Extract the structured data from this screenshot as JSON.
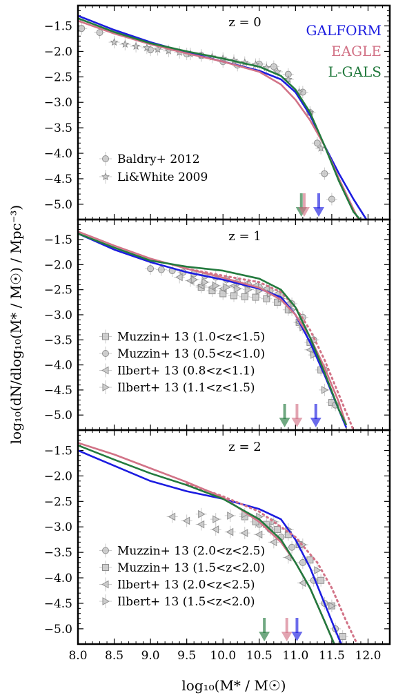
{
  "chart_data": {
    "type": "line",
    "xlabel": "log₁₀(M* / M☉)",
    "ylabel": "log₁₀(dN/dlog₁₀(M* / M☉) / Mpc⁻³)",
    "xlim": [
      8.0,
      12.3
    ],
    "ylim": [
      -5.3,
      -1.1
    ],
    "x_ticks": [
      "8.0",
      "8.5",
      "9.0",
      "9.5",
      "10.0",
      "10.5",
      "11.0",
      "11.5",
      "12.0"
    ],
    "y_ticks": [
      "-1.5",
      "-2.0",
      "-2.5",
      "-3.0",
      "-3.5",
      "-4.0",
      "-4.5",
      "-5.0"
    ],
    "colors": {
      "GALFORM": "#1c1ce0",
      "EAGLE": "#d27387",
      "L-GALS": "#237a3e",
      "data": "#9a9a9a"
    },
    "panels": [
      {
        "label": "z = 0",
        "model_labels": [
          "GALFORM",
          "EAGLE",
          "L-GALS"
        ],
        "series": [
          {
            "name": "GALFORM",
            "style": "solid",
            "x": [
              8.0,
              8.5,
              9.0,
              9.5,
              10.0,
              10.5,
              10.8,
              11.0,
              11.2,
              11.4,
              11.6,
              11.8,
              12.0
            ],
            "y": [
              -1.3,
              -1.58,
              -1.82,
              -2.02,
              -2.2,
              -2.38,
              -2.55,
              -2.8,
              -3.25,
              -3.85,
              -4.4,
              -4.9,
              -5.35
            ]
          },
          {
            "name": "EAGLE",
            "style": "solid",
            "x": [
              8.0,
              8.5,
              9.0,
              9.5,
              10.0,
              10.5,
              10.8,
              11.0,
              11.2,
              11.4,
              11.6,
              11.8,
              11.9
            ],
            "y": [
              -1.4,
              -1.65,
              -1.86,
              -2.04,
              -2.2,
              -2.4,
              -2.65,
              -2.95,
              -3.35,
              -3.85,
              -4.5,
              -5.1,
              -5.4
            ]
          },
          {
            "name": "L-GALS",
            "style": "solid",
            "x": [
              8.0,
              8.5,
              9.0,
              9.5,
              10.0,
              10.5,
              10.8,
              11.0,
              11.2,
              11.4,
              11.6,
              11.8,
              11.95
            ],
            "y": [
              -1.35,
              -1.62,
              -1.84,
              -2.0,
              -2.14,
              -2.3,
              -2.48,
              -2.75,
              -3.2,
              -3.85,
              -4.55,
              -5.15,
              -5.4
            ]
          },
          {
            "name": "Baldry+ 2012",
            "marker": "circle",
            "x": [
              8.05,
              8.3,
              9.0,
              9.5,
              9.7,
              10.0,
              10.2,
              10.5,
              10.7,
              10.9,
              11.1,
              11.2,
              11.3,
              11.4,
              11.5
            ],
            "y": [
              -1.55,
              -1.63,
              -1.97,
              -2.05,
              -2.08,
              -2.2,
              -2.27,
              -2.25,
              -2.3,
              -2.45,
              -2.8,
              -3.2,
              -3.8,
              -4.4,
              -4.9
            ]
          },
          {
            "name": "Li&White 2009",
            "marker": "star",
            "x": [
              8.5,
              8.65,
              8.8,
              8.95,
              9.1,
              9.25,
              9.4,
              9.55,
              9.7,
              9.85,
              10.0,
              10.15,
              10.3,
              10.45,
              10.6,
              10.75,
              10.9,
              11.05,
              11.2,
              11.35
            ],
            "y": [
              -1.82,
              -1.86,
              -1.9,
              -1.93,
              -1.96,
              -1.99,
              -2.02,
              -2.05,
              -2.08,
              -2.11,
              -2.14,
              -2.18,
              -2.22,
              -2.26,
              -2.32,
              -2.4,
              -2.55,
              -2.8,
              -3.2,
              -3.9
            ]
          }
        ],
        "arrows": [
          {
            "series": "L-GALS",
            "x": 11.08
          },
          {
            "series": "EAGLE",
            "x": 11.12
          },
          {
            "series": "GALFORM",
            "x": 11.32
          }
        ],
        "legend": [
          "Baldry+ 2012",
          "Li&White 2009"
        ]
      },
      {
        "label": "z = 1",
        "series": [
          {
            "name": "GALFORM",
            "style": "solid",
            "x": [
              8.0,
              8.5,
              9.0,
              9.5,
              10.0,
              10.5,
              10.8,
              11.0,
              11.2,
              11.4,
              11.6,
              11.7
            ],
            "y": [
              -1.38,
              -1.7,
              -1.95,
              -2.15,
              -2.3,
              -2.48,
              -2.65,
              -3.0,
              -3.55,
              -4.2,
              -4.9,
              -5.25
            ]
          },
          {
            "name": "EAGLE",
            "style": "solid",
            "x": [
              8.0,
              8.5,
              9.0,
              9.5,
              10.0,
              10.5,
              10.8,
              11.0,
              11.2,
              11.4,
              11.6,
              11.7
            ],
            "y": [
              -1.34,
              -1.62,
              -1.88,
              -2.08,
              -2.26,
              -2.46,
              -2.7,
              -3.0,
              -3.45,
              -4.05,
              -4.75,
              -5.2
            ]
          },
          {
            "name": "EAGLE dotted",
            "style": "dotted",
            "x": [
              9.5,
              10.0,
              10.5,
              10.8,
              11.0,
              11.2,
              11.4,
              11.6,
              11.8
            ],
            "y": [
              -2.08,
              -2.22,
              -2.35,
              -2.55,
              -2.85,
              -3.3,
              -3.9,
              -4.6,
              -5.3
            ]
          },
          {
            "name": "L-GALS",
            "style": "solid",
            "x": [
              8.0,
              8.5,
              9.0,
              9.5,
              10.0,
              10.5,
              10.8,
              11.0,
              11.2,
              11.4,
              11.6,
              11.7
            ],
            "y": [
              -1.38,
              -1.66,
              -1.92,
              -2.04,
              -2.12,
              -2.28,
              -2.5,
              -2.85,
              -3.45,
              -4.15,
              -4.9,
              -5.2
            ]
          },
          {
            "name": "Muzzin+ 13 (1.0<z<1.5)",
            "marker": "square",
            "x": [
              9.7,
              9.85,
              10.0,
              10.15,
              10.3,
              10.45,
              10.6,
              10.75,
              10.9,
              11.05,
              11.2,
              11.35,
              11.5
            ],
            "y": [
              -2.45,
              -2.52,
              -2.58,
              -2.62,
              -2.64,
              -2.65,
              -2.68,
              -2.75,
              -2.9,
              -3.15,
              -3.55,
              -4.1,
              -4.75
            ]
          },
          {
            "name": "Muzzin+ 13 (0.5<z<1.0)",
            "marker": "circle",
            "x": [
              9.0,
              9.15,
              9.3,
              9.45,
              9.6,
              9.75,
              9.9,
              10.05,
              10.2,
              10.35,
              10.5,
              10.65,
              10.8,
              10.95,
              11.1,
              11.25,
              11.4,
              11.55
            ],
            "y": [
              -2.08,
              -2.1,
              -2.12,
              -2.15,
              -2.18,
              -2.22,
              -2.25,
              -2.3,
              -2.35,
              -2.4,
              -2.45,
              -2.52,
              -2.62,
              -2.78,
              -3.05,
              -3.5,
              -4.1,
              -4.8
            ]
          },
          {
            "name": "Ilbert+ 13 (0.8<z<1.1)",
            "marker": "tri-left",
            "x": [
              9.4,
              9.55,
              9.7,
              9.85,
              10.0,
              10.15,
              10.3,
              10.45,
              10.6,
              10.75,
              10.9,
              11.05,
              11.2
            ],
            "y": [
              -2.25,
              -2.32,
              -2.42,
              -2.45,
              -2.48,
              -2.42,
              -2.4,
              -2.42,
              -2.48,
              -2.58,
              -2.78,
              -3.15,
              -3.7
            ]
          },
          {
            "name": "Ilbert+ 13 (1.1<z<1.5)",
            "marker": "tri-right",
            "x": [
              9.6,
              9.75,
              9.9,
              10.05,
              10.2,
              10.35,
              10.5,
              10.65,
              10.8,
              10.95,
              11.1,
              11.25,
              11.4
            ],
            "y": [
              -2.3,
              -2.35,
              -2.42,
              -2.45,
              -2.48,
              -2.5,
              -2.52,
              -2.58,
              -2.68,
              -2.9,
              -3.25,
              -3.8,
              -4.5
            ]
          }
        ],
        "arrows": [
          {
            "series": "L-GALS",
            "x": 10.85
          },
          {
            "series": "EAGLE",
            "x": 11.02
          },
          {
            "series": "GALFORM",
            "x": 11.28
          }
        ],
        "legend": [
          "Muzzin+ 13 (1.0<z<1.5)",
          "Muzzin+ 13 (0.5<z<1.0)",
          "Ilbert+ 13 (0.8<z<1.1)",
          "Ilbert+ 13 (1.1<z<1.5)"
        ]
      },
      {
        "label": "z = 2",
        "series": [
          {
            "name": "GALFORM",
            "style": "solid",
            "x": [
              8.0,
              8.5,
              9.0,
              9.5,
              10.0,
              10.5,
              10.8,
              11.0,
              11.2,
              11.4,
              11.6,
              11.65
            ],
            "y": [
              -1.5,
              -1.8,
              -2.1,
              -2.3,
              -2.45,
              -2.65,
              -2.85,
              -3.25,
              -3.8,
              -4.5,
              -5.2,
              -5.35
            ]
          },
          {
            "name": "EAGLE",
            "style": "solid",
            "x": [
              8.0,
              8.5,
              9.0,
              9.5,
              10.0,
              10.5,
              10.8,
              11.0,
              11.2,
              11.4,
              11.55
            ],
            "y": [
              -1.35,
              -1.58,
              -1.85,
              -2.12,
              -2.42,
              -2.9,
              -3.3,
              -3.7,
              -4.2,
              -4.85,
              -5.35
            ]
          },
          {
            "name": "EAGLE dotted",
            "style": "dotted",
            "x": [
              9.5,
              10.0,
              10.5,
              11.0,
              11.3,
              11.5,
              11.7,
              11.85
            ],
            "y": [
              -2.15,
              -2.4,
              -2.7,
              -3.2,
              -3.7,
              -4.2,
              -4.85,
              -5.3
            ]
          },
          {
            "name": "L-GALS",
            "style": "solid",
            "x": [
              8.0,
              8.5,
              9.0,
              9.5,
              10.0,
              10.5,
              10.8,
              11.0,
              11.2,
              11.4,
              11.55
            ],
            "y": [
              -1.4,
              -1.68,
              -1.95,
              -2.18,
              -2.45,
              -2.85,
              -3.25,
              -3.7,
              -4.2,
              -4.85,
              -5.35
            ]
          },
          {
            "name": "Muzzin+ 13 (2.0<z<2.5)",
            "marker": "circle",
            "x": [
              10.5,
              10.65,
              10.8,
              10.95,
              11.1,
              11.25,
              11.4,
              11.55
            ],
            "y": [
              -2.95,
              -3.05,
              -3.2,
              -3.4,
              -3.7,
              -4.05,
              -4.5,
              -5.0
            ]
          },
          {
            "name": "Muzzin+ 13 (1.5<z<2.0)",
            "marker": "square",
            "x": [
              10.3,
              10.45,
              10.6,
              10.75,
              10.9,
              11.05,
              11.2,
              11.35,
              11.5,
              11.65
            ],
            "y": [
              -2.8,
              -2.9,
              -2.95,
              -3.05,
              -3.15,
              -3.35,
              -3.65,
              -4.05,
              -4.55,
              -5.15
            ]
          },
          {
            "name": "Ilbert+ 13 (2.0<z<2.5)",
            "marker": "tri-left",
            "x": [
              9.3,
              9.5,
              9.7,
              9.9,
              10.1,
              10.3,
              10.5,
              10.7,
              10.9,
              11.1
            ],
            "y": [
              -2.8,
              -2.88,
              -2.95,
              -3.05,
              -3.1,
              -3.12,
              -3.15,
              -3.3,
              -3.6,
              -4.1
            ]
          },
          {
            "name": "Ilbert+ 13 (1.5<z<2.0)",
            "marker": "tri-right",
            "x": [
              9.7,
              9.9,
              10.1,
              10.3,
              10.5,
              10.7,
              10.9,
              11.1,
              11.3,
              11.5
            ],
            "y": [
              -2.75,
              -2.85,
              -2.78,
              -2.75,
              -2.8,
              -2.9,
              -3.05,
              -3.35,
              -3.85,
              -4.55
            ]
          }
        ],
        "arrows": [
          {
            "series": "L-GALS",
            "x": 10.57
          },
          {
            "series": "EAGLE",
            "x": 10.88
          },
          {
            "series": "GALFORM",
            "x": 11.02
          }
        ],
        "legend": [
          "Muzzin+ 13 (2.0<z<2.5)",
          "Muzzin+ 13 (1.5<z<2.0)",
          "Ilbert+ 13 (2.0<z<2.5)",
          "Ilbert+ 13 (1.5<z<2.0)"
        ]
      }
    ]
  }
}
